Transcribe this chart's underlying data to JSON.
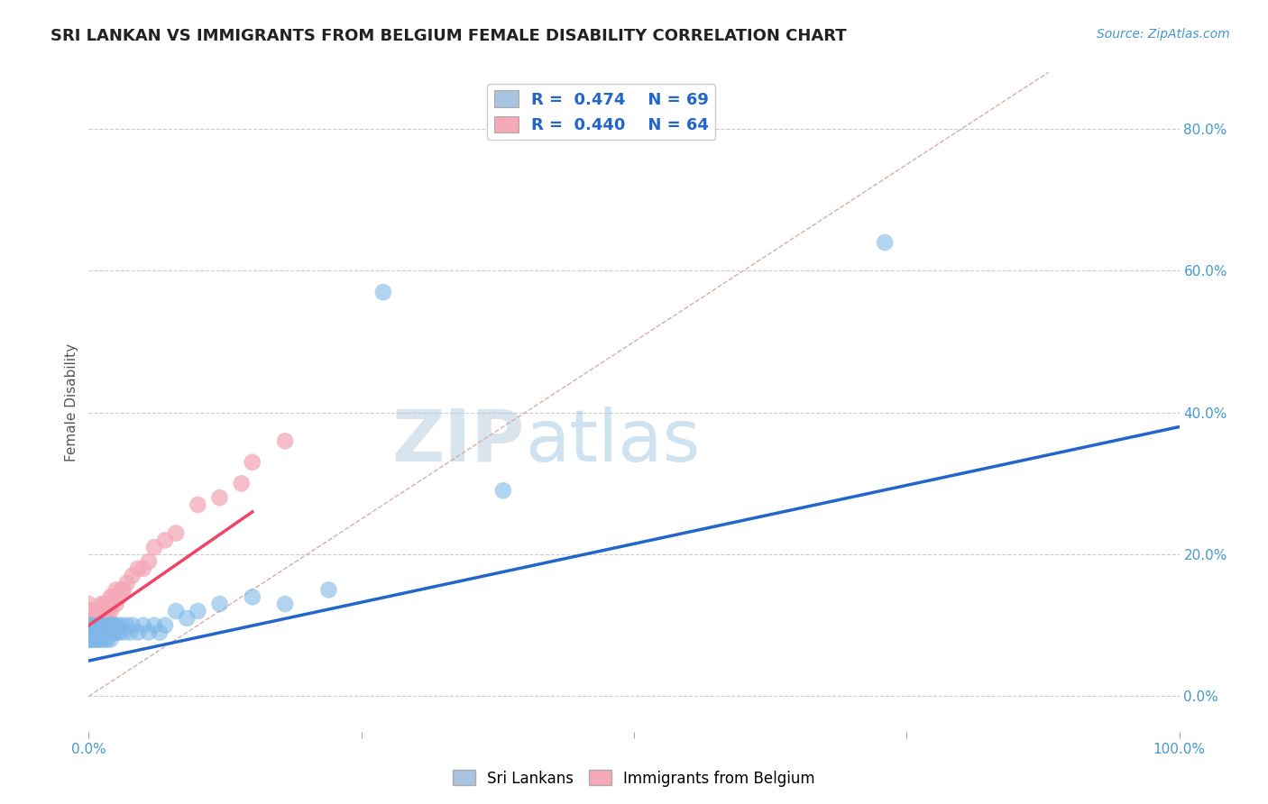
{
  "title": "SRI LANKAN VS IMMIGRANTS FROM BELGIUM FEMALE DISABILITY CORRELATION CHART",
  "source": "Source: ZipAtlas.com",
  "ylabel_label": "Female Disability",
  "right_yticks": [
    0.0,
    0.2,
    0.4,
    0.6,
    0.8
  ],
  "right_yticklabels": [
    "0.0%",
    "20.0%",
    "40.0%",
    "60.0%",
    "80.0%"
  ],
  "xlim": [
    0.0,
    1.0
  ],
  "ylim": [
    -0.05,
    0.88
  ],
  "legend_entry1": "R =  0.474    N = 69",
  "legend_entry2": "R =  0.440    N = 64",
  "legend_color1": "#a8c4e0",
  "legend_color2": "#f4a8b8",
  "watermark_zip": "ZIP",
  "watermark_atlas": "atlas",
  "background_color": "#ffffff",
  "grid_color": "#cccccc",
  "title_color": "#222222",
  "source_color": "#4499cc",
  "scatter_blue_color": "#7eb8e8",
  "scatter_pink_color": "#f4a8b8",
  "trendline_blue_color": "#2266cc",
  "trendline_pink_color": "#ee4466",
  "trendline_diagonal_color": "#ddaaaa",
  "sri_lankans_x": [
    0.0,
    0.0,
    0.0,
    0.001,
    0.001,
    0.002,
    0.002,
    0.002,
    0.003,
    0.003,
    0.004,
    0.004,
    0.005,
    0.005,
    0.006,
    0.006,
    0.007,
    0.007,
    0.008,
    0.008,
    0.009,
    0.009,
    0.01,
    0.01,
    0.011,
    0.011,
    0.012,
    0.012,
    0.013,
    0.013,
    0.014,
    0.015,
    0.015,
    0.016,
    0.016,
    0.017,
    0.018,
    0.018,
    0.019,
    0.02,
    0.02,
    0.021,
    0.022,
    0.023,
    0.024,
    0.025,
    0.026,
    0.028,
    0.03,
    0.032,
    0.035,
    0.038,
    0.04,
    0.045,
    0.05,
    0.055,
    0.06,
    0.065,
    0.07,
    0.08,
    0.09,
    0.1,
    0.12,
    0.15,
    0.18,
    0.22,
    0.27,
    0.73,
    0.38
  ],
  "sri_lankans_y": [
    0.08,
    0.09,
    0.1,
    0.08,
    0.09,
    0.08,
    0.09,
    0.1,
    0.08,
    0.09,
    0.08,
    0.09,
    0.09,
    0.1,
    0.08,
    0.09,
    0.08,
    0.09,
    0.08,
    0.09,
    0.09,
    0.1,
    0.08,
    0.1,
    0.09,
    0.1,
    0.08,
    0.09,
    0.09,
    0.1,
    0.09,
    0.08,
    0.09,
    0.09,
    0.1,
    0.08,
    0.09,
    0.1,
    0.09,
    0.08,
    0.1,
    0.09,
    0.1,
    0.09,
    0.1,
    0.09,
    0.1,
    0.09,
    0.1,
    0.09,
    0.1,
    0.09,
    0.1,
    0.09,
    0.1,
    0.09,
    0.1,
    0.09,
    0.1,
    0.12,
    0.11,
    0.12,
    0.13,
    0.14,
    0.13,
    0.15,
    0.57,
    0.64,
    0.29
  ],
  "belgium_x": [
    0.0,
    0.0,
    0.0,
    0.0,
    0.001,
    0.001,
    0.001,
    0.002,
    0.002,
    0.002,
    0.003,
    0.003,
    0.003,
    0.004,
    0.004,
    0.004,
    0.005,
    0.005,
    0.005,
    0.006,
    0.006,
    0.007,
    0.007,
    0.007,
    0.008,
    0.008,
    0.009,
    0.009,
    0.01,
    0.01,
    0.011,
    0.011,
    0.012,
    0.012,
    0.013,
    0.014,
    0.015,
    0.015,
    0.016,
    0.017,
    0.018,
    0.019,
    0.02,
    0.02,
    0.021,
    0.022,
    0.025,
    0.025,
    0.028,
    0.03,
    0.032,
    0.035,
    0.04,
    0.045,
    0.05,
    0.055,
    0.06,
    0.07,
    0.08,
    0.1,
    0.12,
    0.14,
    0.15,
    0.18
  ],
  "belgium_y": [
    0.1,
    0.11,
    0.12,
    0.13,
    0.1,
    0.11,
    0.12,
    0.1,
    0.11,
    0.12,
    0.1,
    0.11,
    0.12,
    0.1,
    0.11,
    0.12,
    0.1,
    0.11,
    0.12,
    0.1,
    0.11,
    0.1,
    0.11,
    0.12,
    0.1,
    0.11,
    0.11,
    0.12,
    0.1,
    0.12,
    0.11,
    0.12,
    0.11,
    0.13,
    0.12,
    0.13,
    0.11,
    0.12,
    0.12,
    0.13,
    0.12,
    0.13,
    0.12,
    0.14,
    0.13,
    0.14,
    0.13,
    0.15,
    0.14,
    0.15,
    0.15,
    0.16,
    0.17,
    0.18,
    0.18,
    0.19,
    0.21,
    0.22,
    0.23,
    0.27,
    0.28,
    0.3,
    0.33,
    0.36
  ],
  "trendline_blue_x0": 0.0,
  "trendline_blue_y0": 0.05,
  "trendline_blue_x1": 1.0,
  "trendline_blue_y1": 0.38,
  "trendline_pink_x0": 0.0,
  "trendline_pink_y0": 0.1,
  "trendline_pink_x1": 0.15,
  "trendline_pink_y1": 0.26
}
